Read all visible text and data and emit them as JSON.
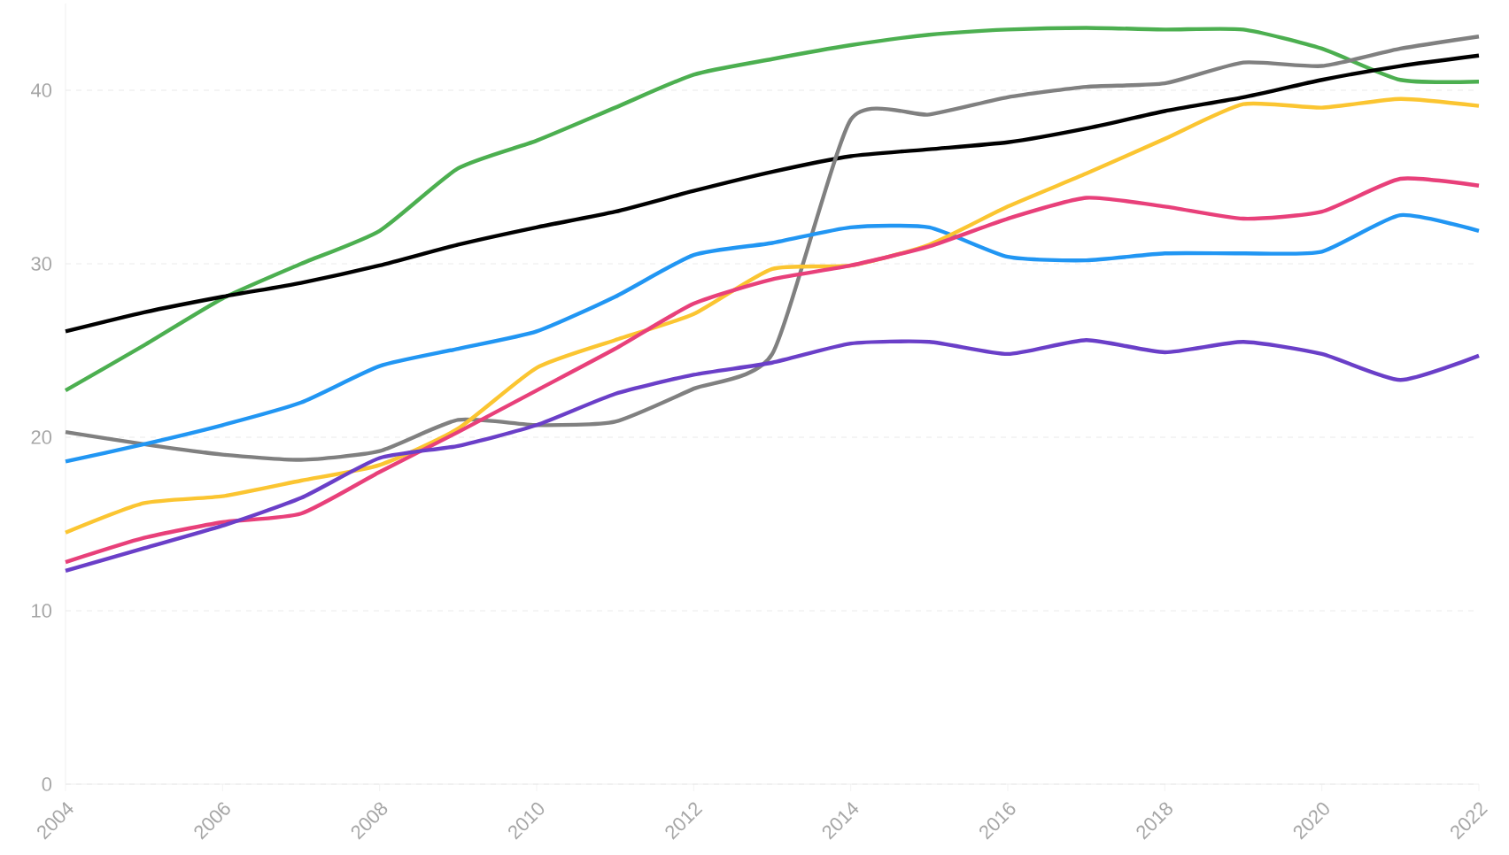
{
  "chart_data": {
    "type": "line",
    "x": [
      2004,
      2005,
      2006,
      2007,
      2008,
      2009,
      2010,
      2011,
      2012,
      2013,
      2014,
      2015,
      2016,
      2017,
      2018,
      2019,
      2020,
      2021,
      2022
    ],
    "xlim": [
      2004,
      2022
    ],
    "xticks": [
      2004,
      2006,
      2008,
      2010,
      2012,
      2014,
      2016,
      2018,
      2020,
      2022
    ],
    "ylim": [
      0,
      45
    ],
    "yticks": [
      0,
      10,
      20,
      30,
      40
    ],
    "grid": "y",
    "marker": "none",
    "series": [
      {
        "color": "#4caf50",
        "values": [
          22.7,
          25.3,
          28.0,
          30.0,
          31.9,
          35.5,
          37.1,
          39.0,
          40.9,
          41.8,
          42.6,
          43.2,
          43.5,
          43.6,
          43.5,
          43.5,
          42.4,
          40.6,
          40.5
        ]
      },
      {
        "color": "#000000",
        "values": [
          26.1,
          27.2,
          28.1,
          28.9,
          29.9,
          31.1,
          32.1,
          33.0,
          34.2,
          35.3,
          36.2,
          36.6,
          37.0,
          37.8,
          38.8,
          39.6,
          40.6,
          41.4,
          42.0
        ]
      },
      {
        "color": "#808080",
        "values": [
          20.3,
          19.6,
          19.0,
          18.7,
          19.2,
          21.0,
          20.7,
          20.9,
          22.8,
          24.8,
          38.3,
          38.6,
          39.6,
          40.2,
          40.4,
          41.6,
          41.4,
          42.4,
          43.1
        ]
      },
      {
        "color": "#2196f3",
        "values": [
          18.6,
          19.6,
          20.7,
          22.0,
          24.1,
          25.1,
          26.1,
          28.1,
          30.5,
          31.2,
          32.1,
          32.1,
          30.4,
          30.2,
          30.6,
          30.6,
          30.7,
          32.8,
          31.9
        ]
      },
      {
        "color": "#fbc531",
        "values": [
          14.5,
          16.2,
          16.6,
          17.5,
          18.4,
          20.5,
          24.0,
          25.6,
          27.1,
          29.7,
          29.9,
          31.1,
          33.3,
          35.2,
          37.2,
          39.2,
          39.0,
          39.5,
          39.1
        ]
      },
      {
        "color": "#e8407a",
        "values": [
          12.8,
          14.2,
          15.1,
          15.6,
          18.0,
          20.3,
          22.7,
          25.1,
          27.7,
          29.1,
          29.9,
          31.0,
          32.6,
          33.8,
          33.3,
          32.6,
          33.0,
          34.9,
          34.5
        ]
      },
      {
        "color": "#6a3fc8",
        "values": [
          12.3,
          13.6,
          14.9,
          16.5,
          18.8,
          19.5,
          20.7,
          22.5,
          23.6,
          24.3,
          25.4,
          25.5,
          24.8,
          25.6,
          24.9,
          25.5,
          24.8,
          23.3,
          24.7
        ]
      }
    ]
  }
}
